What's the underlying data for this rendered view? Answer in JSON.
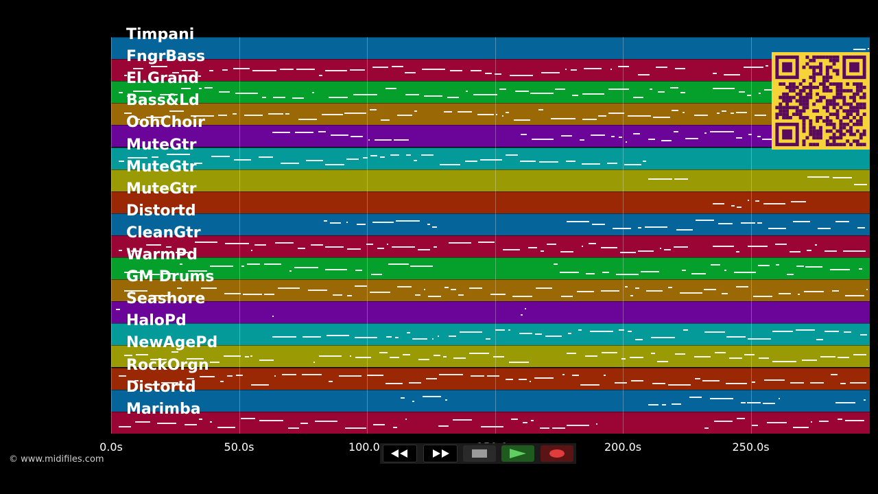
{
  "tracks": [
    {
      "name": "Timpani",
      "color": "#05649a"
    },
    {
      "name": "FngrBass",
      "color": "#9a0535"
    },
    {
      "name": "El.Grand",
      "color": "#05a02c"
    },
    {
      "name": "Bass&Ld",
      "color": "#9a6905"
    },
    {
      "name": "OohChoir",
      "color": "#6b059a"
    },
    {
      "name": "MuteGtr",
      "color": "#059a9a"
    },
    {
      "name": "MuteGtr",
      "color": "#9a9a05"
    },
    {
      "name": "MuteGtr",
      "color": "#9a2805"
    },
    {
      "name": "Distortd",
      "color": "#05649a"
    },
    {
      "name": "CleanGtr",
      "color": "#9a0535"
    },
    {
      "name": "WarmPd",
      "color": "#05a02c"
    },
    {
      "name": "GM Drums",
      "color": "#9a6905"
    },
    {
      "name": "Seashore",
      "color": "#6b059a"
    },
    {
      "name": "HaloPd",
      "color": "#059a9a"
    },
    {
      "name": "NewAgePd",
      "color": "#9a9a05"
    },
    {
      "name": "RockOrgn",
      "color": "#9a2805"
    },
    {
      "name": "Distortd",
      "color": "#05649a"
    },
    {
      "name": "Marimba",
      "color": "#9a0535"
    }
  ],
  "time_axis": {
    "ticks": [
      {
        "label": "0.0s",
        "value": 0
      },
      {
        "label": "50.0s",
        "value": 50
      },
      {
        "label": "100.0s",
        "value": 100
      },
      {
        "label": "150.0s",
        "value": 150
      },
      {
        "label": "200.0s",
        "value": 200
      },
      {
        "label": "250.0s",
        "value": 250
      }
    ],
    "max_seconds": 296.5
  },
  "controls": {
    "rewind": "◀◀",
    "fast_forward": "▶▶",
    "stop_color": "#9a9a9a",
    "play_color": "#5fcf5f",
    "record_color": "#e03c3c"
  },
  "copyright": "© www.midifiles.com"
}
